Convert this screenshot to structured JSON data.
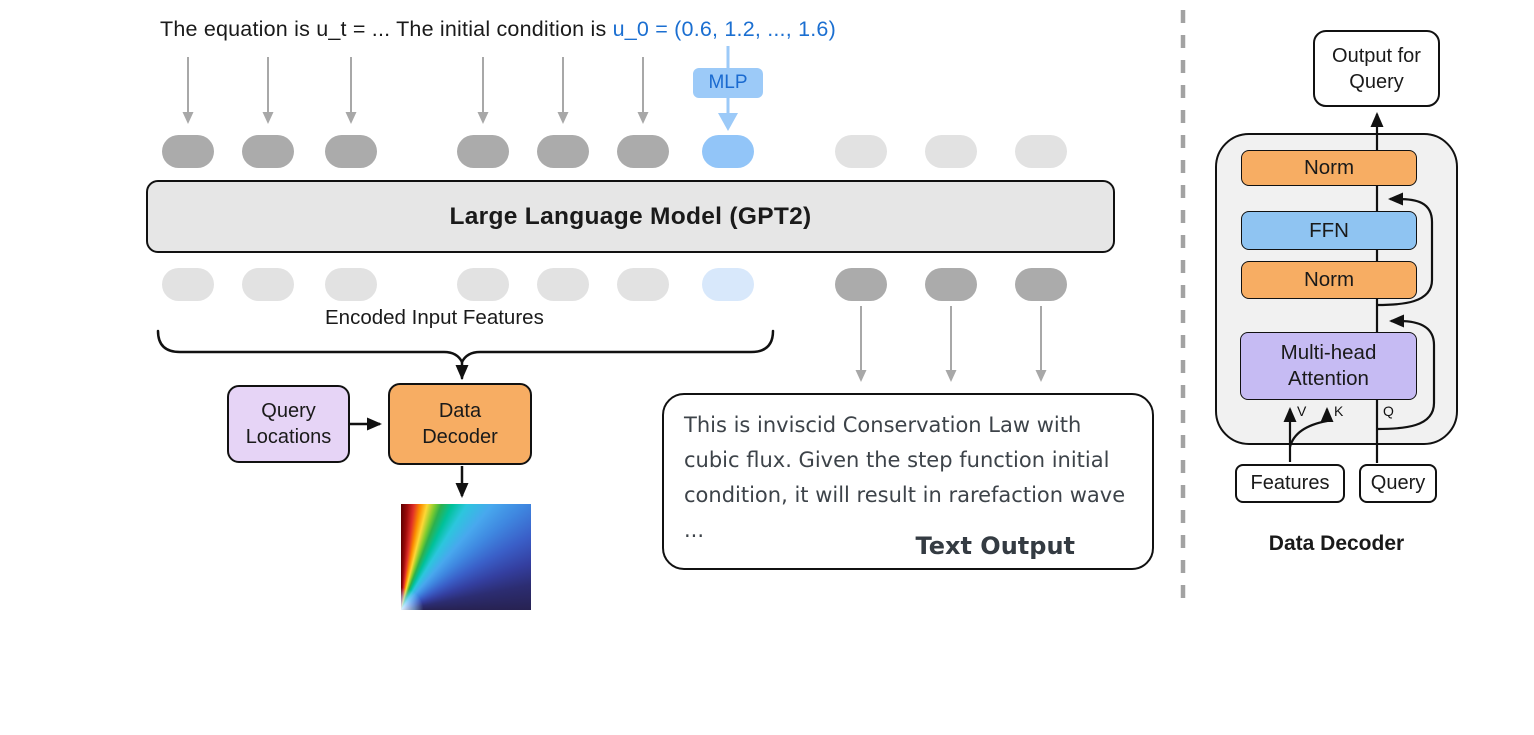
{
  "prompt": {
    "text_black": "The equation is u_t = ... The initial condition is ",
    "text_blue": "u_0 = (0.6, 1.2, ..., 1.6)"
  },
  "mlp_label": "MLP",
  "llm_label": "Large Language Model (GPT2)",
  "encoded_features_label": "Encoded Input Features",
  "query_locations_box": {
    "line1": "Query",
    "line2": "Locations"
  },
  "data_decoder_box": {
    "line1": "Data",
    "line2": "Decoder"
  },
  "text_output": {
    "body": "This is inviscid Conservation Law with cubic flux. Given the step function initial condition, it will result in rarefaction wave ...",
    "label": "Text Output"
  },
  "decoder_panel": {
    "output_box": {
      "line1": "Output for",
      "line2": "Query"
    },
    "norm_top": "Norm",
    "ffn": "FFN",
    "norm_bottom": "Norm",
    "attention": {
      "line1": "Multi-head",
      "line2": "Attention"
    },
    "v_label": "V",
    "k_label": "K",
    "q_label": "Q",
    "features": "Features",
    "query": "Query",
    "caption": "Data Decoder"
  },
  "tokens": {
    "top_row": [
      "gray",
      "gray",
      "gray",
      "gray",
      "gray",
      "gray",
      "blue",
      "light",
      "light",
      "light"
    ],
    "bottom_row": [
      "light",
      "light",
      "light",
      "light",
      "light",
      "light",
      "lightblue",
      "gray",
      "gray",
      "gray"
    ]
  },
  "colors": {
    "accent_blue_text": "#1b6fd1",
    "token_gray": "#ababab",
    "token_light": "#e2e2e2",
    "token_blue": "#92c5f8",
    "token_light_blue": "#d8e8fb",
    "mlp_fill": "#9ccaf8",
    "llm_fill": "#e6e6e6",
    "orange_fill": "#f7ad63",
    "ffn_blue_fill": "#8fc4f2",
    "attention_purple_fill": "#c6bbf3",
    "query_lavender_fill": "#e6d4f6",
    "container_fill": "#f1f1f1",
    "arrow_gray": "#a8a8a8"
  }
}
